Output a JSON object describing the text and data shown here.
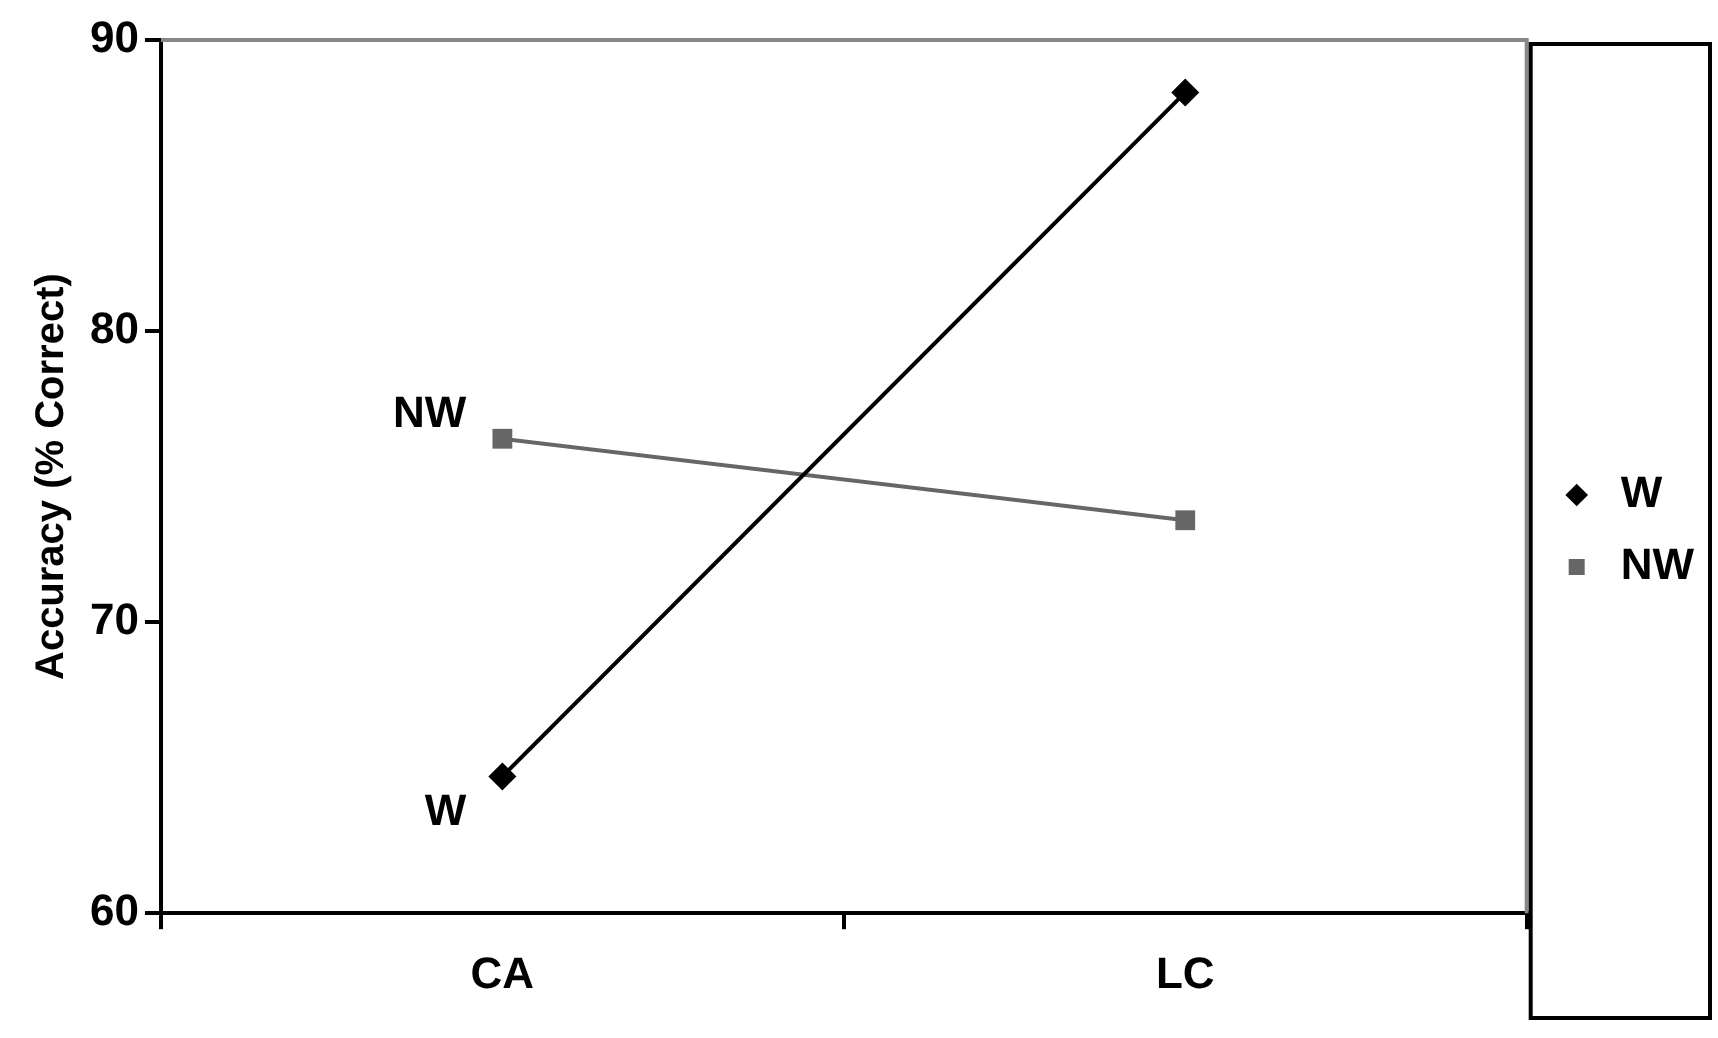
{
  "chart_data": {
    "type": "line",
    "ylabel": "Accuracy (% Correct)",
    "categories": [
      "CA",
      "LC"
    ],
    "series": [
      {
        "name": "W",
        "color": "#000000",
        "values": [
          64.7,
          88.2
        ],
        "marker": "diamond"
      },
      {
        "name": "NW",
        "color": "#666666",
        "values": [
          76.3,
          73.5
        ],
        "marker": "square"
      }
    ],
    "ylim": [
      60,
      90
    ],
    "yticks": [
      60,
      70,
      80,
      90
    ],
    "grid": false,
    "legend": "right",
    "line_style": "solid",
    "annotations": [
      {
        "text": "NW",
        "x": "CA",
        "y": 76.3
      },
      {
        "text": "W",
        "x": "CA",
        "y": 64.7
      }
    ]
  }
}
